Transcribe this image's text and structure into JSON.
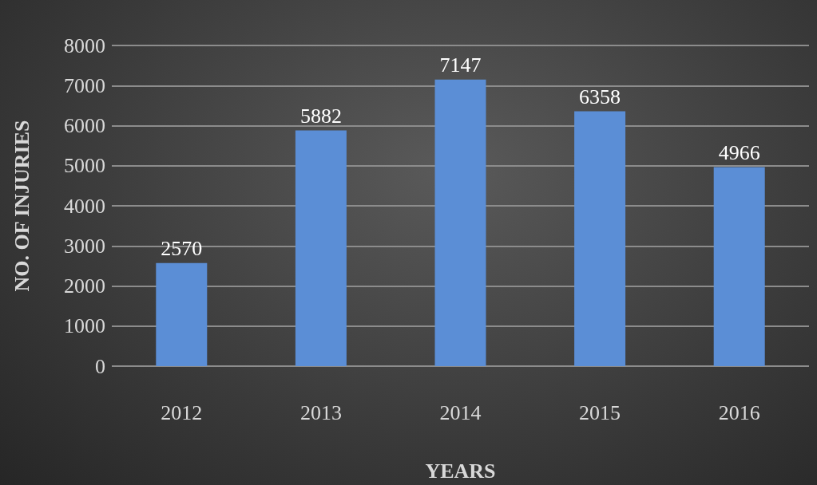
{
  "chart_data": {
    "type": "bar",
    "categories": [
      "2012",
      "2013",
      "2014",
      "2015",
      "2016"
    ],
    "values": [
      2570,
      5882,
      7147,
      6358,
      4966
    ],
    "color": "#5b8ed6",
    "xlabel": "YEARS",
    "ylabel": "NO. OF INJURIES",
    "ylim": [
      0,
      8000
    ],
    "yticks": [
      0,
      1000,
      2000,
      3000,
      4000,
      5000,
      6000,
      7000,
      8000
    ],
    "grid": "y",
    "data_labels": true
  }
}
